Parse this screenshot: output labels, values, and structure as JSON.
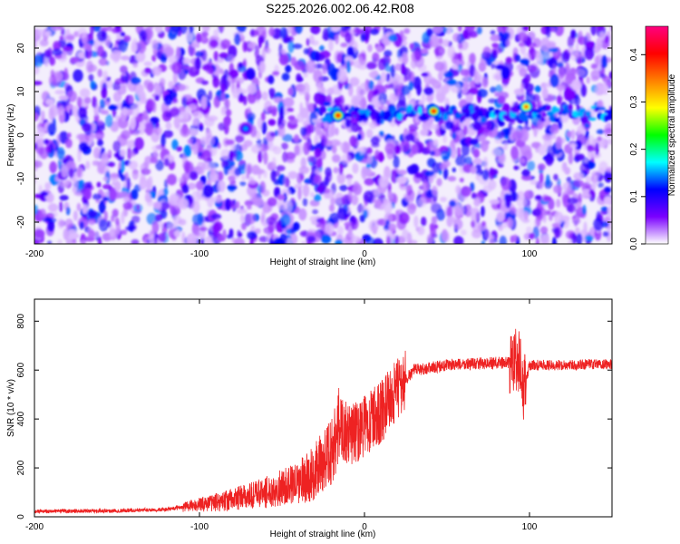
{
  "title": "S225.2026.002.06.42.R08",
  "chart_data": [
    {
      "type": "heatmap",
      "xlabel": "Height of straight line (km)",
      "ylabel": "Frequency (Hz)",
      "xlim": [
        -200,
        150
      ],
      "ylim": [
        -25,
        25
      ],
      "xticks": [
        -200,
        -100,
        0,
        100
      ],
      "yticks": [
        -20,
        -10,
        0,
        10,
        20
      ],
      "colorbar": {
        "label": "Normalized spectral amplitude",
        "range": [
          0,
          0.46
        ],
        "ticks": [
          0.0,
          0.1,
          0.2,
          0.3,
          0.4
        ],
        "colors": [
          "#ffffff",
          "#7a00ff",
          "#0000ff",
          "#00ffff",
          "#00ff00",
          "#ffff00",
          "#ff8000",
          "#ff0000",
          "#ff0080"
        ]
      },
      "features": [
        {
          "x_range": [
            -30,
            150
          ],
          "frequency": 5,
          "amplitude": 0.12
        },
        {
          "x": -16,
          "frequency": 4.5,
          "amplitude": 0.4
        },
        {
          "x": 42,
          "frequency": 5.5,
          "amplitude": 0.4
        },
        {
          "x": 98,
          "frequency": 6.5,
          "amplitude": 0.35
        },
        {
          "x": -72,
          "frequency": 1.5,
          "amplitude": 0.15
        }
      ]
    },
    {
      "type": "line",
      "xlabel": "Height of straight line (km)",
      "ylabel": "SNR (10 * v/v)",
      "xlim": [
        -200,
        150
      ],
      "ylim": [
        0,
        890
      ],
      "xticks": [
        -200,
        -100,
        0,
        100
      ],
      "yticks": [
        0,
        200,
        400,
        600,
        800
      ],
      "color": "#ee2222",
      "x": [
        -200,
        -150,
        -120,
        -100,
        -80,
        -60,
        -40,
        -30,
        -20,
        -15,
        -10,
        0,
        10,
        20,
        30,
        50,
        80,
        90,
        94,
        96,
        100,
        120,
        150
      ],
      "y": [
        22,
        25,
        30,
        50,
        70,
        100,
        140,
        180,
        270,
        380,
        330,
        370,
        430,
        520,
        600,
        620,
        630,
        630,
        650,
        500,
        620,
        620,
        625
      ]
    }
  ]
}
